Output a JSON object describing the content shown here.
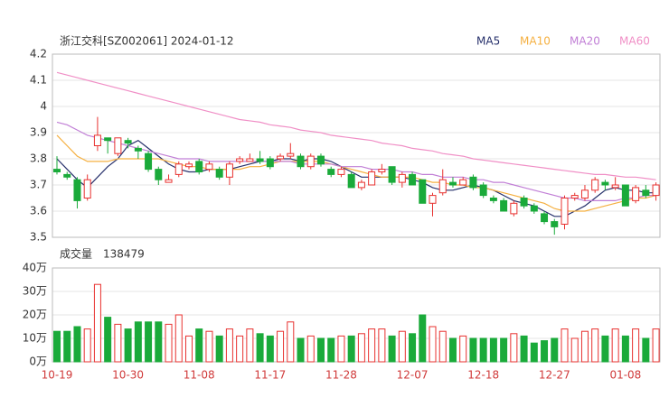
{
  "chart_data": [
    {
      "type": "candlestick",
      "title": "浙江交科[SZ002061] 2024-01-12",
      "up_color": "#e8312f",
      "down_color": "#1aaa3a",
      "open": [
        3.76,
        3.74,
        3.72,
        3.65,
        3.85,
        3.88,
        3.82,
        3.87,
        3.84,
        3.82,
        3.76,
        3.71,
        3.74,
        3.77,
        3.79,
        3.76,
        3.76,
        3.73,
        3.79,
        3.79,
        3.8,
        3.8,
        3.8,
        3.81,
        3.81,
        3.77,
        3.81,
        3.76,
        3.74,
        3.74,
        3.69,
        3.7,
        3.75,
        3.77,
        3.71,
        3.74,
        3.72,
        3.63,
        3.67,
        3.71,
        3.7,
        3.73,
        3.7,
        3.65,
        3.64,
        3.59,
        3.65,
        3.62,
        3.59,
        3.56,
        3.55,
        3.65,
        3.65,
        3.68,
        3.71,
        3.69,
        3.7,
        3.64,
        3.68,
        3.66
      ],
      "high": [
        3.81,
        3.75,
        3.73,
        3.74,
        3.96,
        3.88,
        3.88,
        3.88,
        3.85,
        3.83,
        3.77,
        3.74,
        3.79,
        3.79,
        3.8,
        3.79,
        3.77,
        3.79,
        3.81,
        3.82,
        3.83,
        3.81,
        3.82,
        3.86,
        3.82,
        3.82,
        3.82,
        3.77,
        3.77,
        3.75,
        3.72,
        3.76,
        3.78,
        3.77,
        3.75,
        3.75,
        3.72,
        3.67,
        3.76,
        3.73,
        3.73,
        3.74,
        3.71,
        3.66,
        3.65,
        3.64,
        3.66,
        3.63,
        3.6,
        3.57,
        3.66,
        3.67,
        3.7,
        3.73,
        3.72,
        3.73,
        3.7,
        3.7,
        3.7,
        3.71
      ],
      "low": [
        3.74,
        3.72,
        3.61,
        3.64,
        3.83,
        3.82,
        3.81,
        3.84,
        3.8,
        3.75,
        3.7,
        3.71,
        3.73,
        3.76,
        3.74,
        3.75,
        3.72,
        3.7,
        3.78,
        3.79,
        3.78,
        3.76,
        3.79,
        3.8,
        3.76,
        3.76,
        3.77,
        3.73,
        3.73,
        3.69,
        3.68,
        3.7,
        3.74,
        3.7,
        3.69,
        3.7,
        3.63,
        3.58,
        3.66,
        3.69,
        3.7,
        3.68,
        3.65,
        3.63,
        3.6,
        3.58,
        3.61,
        3.59,
        3.55,
        3.51,
        3.53,
        3.64,
        3.64,
        3.67,
        3.68,
        3.68,
        3.62,
        3.63,
        3.65,
        3.64
      ],
      "close": [
        3.75,
        3.73,
        3.64,
        3.72,
        3.89,
        3.87,
        3.88,
        3.86,
        3.83,
        3.76,
        3.72,
        3.72,
        3.78,
        3.78,
        3.75,
        3.78,
        3.73,
        3.78,
        3.8,
        3.8,
        3.79,
        3.77,
        3.81,
        3.82,
        3.77,
        3.81,
        3.78,
        3.74,
        3.76,
        3.69,
        3.71,
        3.75,
        3.76,
        3.71,
        3.74,
        3.7,
        3.63,
        3.66,
        3.72,
        3.7,
        3.72,
        3.69,
        3.66,
        3.64,
        3.6,
        3.63,
        3.62,
        3.6,
        3.56,
        3.54,
        3.65,
        3.66,
        3.68,
        3.72,
        3.7,
        3.7,
        3.62,
        3.69,
        3.66,
        3.7
      ],
      "series": [
        {
          "name": "MA5",
          "color": "#26306b",
          "values": [
            3.8,
            3.76,
            3.72,
            3.69,
            3.73,
            3.77,
            3.8,
            3.85,
            3.87,
            3.84,
            3.81,
            3.78,
            3.76,
            3.75,
            3.75,
            3.76,
            3.76,
            3.76,
            3.77,
            3.78,
            3.79,
            3.79,
            3.8,
            3.8,
            3.79,
            3.8,
            3.8,
            3.79,
            3.77,
            3.75,
            3.73,
            3.73,
            3.73,
            3.73,
            3.73,
            3.72,
            3.71,
            3.69,
            3.68,
            3.68,
            3.69,
            3.7,
            3.69,
            3.68,
            3.66,
            3.64,
            3.63,
            3.62,
            3.6,
            3.58,
            3.58,
            3.6,
            3.62,
            3.65,
            3.68,
            3.69,
            3.68,
            3.68,
            3.67,
            3.67
          ]
        },
        {
          "name": "MA10",
          "color": "#f5b041",
          "values": [
            3.89,
            3.85,
            3.81,
            3.79,
            3.79,
            3.79,
            3.8,
            3.8,
            3.8,
            3.8,
            3.8,
            3.79,
            3.78,
            3.77,
            3.77,
            3.76,
            3.76,
            3.76,
            3.76,
            3.77,
            3.77,
            3.78,
            3.79,
            3.79,
            3.79,
            3.79,
            3.79,
            3.78,
            3.77,
            3.76,
            3.75,
            3.74,
            3.73,
            3.73,
            3.73,
            3.73,
            3.72,
            3.71,
            3.71,
            3.7,
            3.7,
            3.69,
            3.69,
            3.68,
            3.67,
            3.66,
            3.65,
            3.64,
            3.63,
            3.61,
            3.6,
            3.6,
            3.6,
            3.61,
            3.62,
            3.63,
            3.64,
            3.65,
            3.65,
            3.66
          ]
        },
        {
          "name": "MA20",
          "color": "#c17fd6",
          "values": [
            3.94,
            3.93,
            3.91,
            3.89,
            3.88,
            3.87,
            3.86,
            3.85,
            3.84,
            3.83,
            3.82,
            3.81,
            3.8,
            3.8,
            3.8,
            3.79,
            3.79,
            3.79,
            3.79,
            3.79,
            3.79,
            3.79,
            3.79,
            3.79,
            3.78,
            3.78,
            3.78,
            3.78,
            3.77,
            3.77,
            3.77,
            3.76,
            3.76,
            3.76,
            3.75,
            3.75,
            3.74,
            3.74,
            3.73,
            3.73,
            3.73,
            3.72,
            3.72,
            3.71,
            3.71,
            3.7,
            3.69,
            3.68,
            3.67,
            3.66,
            3.65,
            3.65,
            3.64,
            3.64,
            3.64,
            3.64,
            3.65,
            3.65,
            3.66,
            3.66
          ]
        },
        {
          "name": "MA60",
          "color": "#f08fc6",
          "values": [
            4.13,
            4.12,
            4.11,
            4.1,
            4.09,
            4.08,
            4.07,
            4.06,
            4.05,
            4.04,
            4.03,
            4.02,
            4.01,
            4.0,
            3.99,
            3.98,
            3.97,
            3.96,
            3.95,
            3.945,
            3.94,
            3.93,
            3.925,
            3.92,
            3.91,
            3.905,
            3.9,
            3.89,
            3.885,
            3.88,
            3.875,
            3.87,
            3.86,
            3.855,
            3.85,
            3.84,
            3.835,
            3.83,
            3.82,
            3.815,
            3.81,
            3.8,
            3.795,
            3.79,
            3.785,
            3.78,
            3.775,
            3.77,
            3.765,
            3.76,
            3.755,
            3.75,
            3.745,
            3.74,
            3.74,
            3.735,
            3.73,
            3.73,
            3.725,
            3.72
          ]
        }
      ],
      "ylim": [
        3.5,
        4.2
      ],
      "yticks": [
        4.2,
        4.1,
        4,
        3.9,
        3.8,
        3.7,
        3.6,
        3.5
      ],
      "grid": true
    },
    {
      "type": "bar",
      "label": "成交量",
      "total": 138479,
      "categories": [
        "10-19",
        null,
        null,
        null,
        null,
        null,
        null,
        "10-30",
        null,
        null,
        null,
        null,
        null,
        null,
        "11-08",
        null,
        null,
        null,
        null,
        null,
        null,
        "11-17",
        null,
        null,
        null,
        null,
        null,
        null,
        "11-28",
        null,
        null,
        null,
        null,
        null,
        null,
        "12-07",
        null,
        null,
        null,
        null,
        null,
        null,
        "12-18",
        null,
        null,
        null,
        null,
        null,
        null,
        "12-27",
        null,
        null,
        null,
        null,
        null,
        null,
        "01-08",
        null,
        null,
        null
      ],
      "values": [
        13,
        13,
        15,
        14,
        33,
        19,
        16,
        14,
        17,
        17,
        17,
        16,
        20,
        11,
        14,
        13,
        11,
        14,
        11,
        14,
        12,
        11,
        13,
        17,
        10,
        11,
        10,
        10,
        11,
        11,
        12,
        14,
        14,
        11,
        13,
        12,
        20,
        15,
        13,
        10,
        11,
        10,
        10,
        10,
        10,
        12,
        11,
        8,
        9,
        10,
        14,
        10,
        13,
        14,
        11,
        14,
        11,
        14,
        10,
        14
      ],
      "ylim": [
        0,
        40
      ],
      "yticks": [
        {
          "value": 40,
          "label": "40万"
        },
        {
          "value": 30,
          "label": "30万"
        },
        {
          "value": 20,
          "label": "20万"
        },
        {
          "value": 10,
          "label": "10万"
        },
        {
          "value": 0,
          "label": "0万"
        }
      ],
      "grid": true
    }
  ]
}
